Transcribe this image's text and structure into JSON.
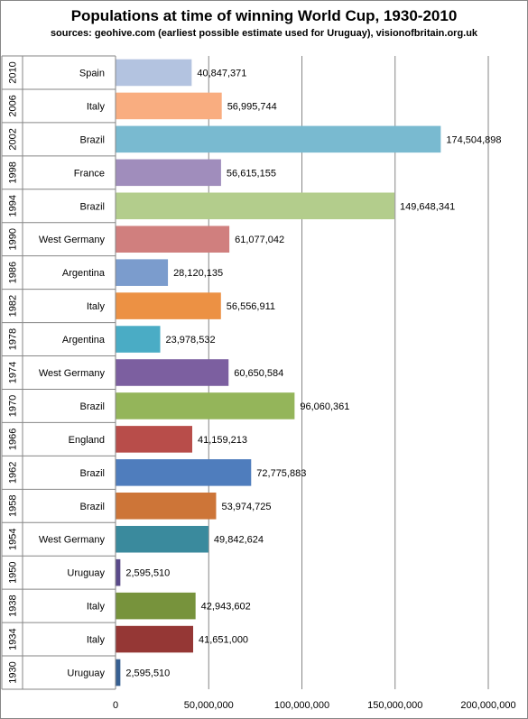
{
  "chart_data": {
    "type": "bar",
    "orientation": "horizontal",
    "title": "Populations at time of winning World Cup, 1930-2010",
    "subtitle": "sources: geohive.com (earliest possible estimate used for Uruguay), visionofbritain.org.uk",
    "categories": [
      {
        "year": "2010",
        "country": "Spain"
      },
      {
        "year": "2006",
        "country": "Italy"
      },
      {
        "year": "2002",
        "country": "Brazil"
      },
      {
        "year": "1998",
        "country": "France"
      },
      {
        "year": "1994",
        "country": "Brazil"
      },
      {
        "year": "1990",
        "country": "West Germany"
      },
      {
        "year": "1986",
        "country": "Argentina"
      },
      {
        "year": "1982",
        "country": "Italy"
      },
      {
        "year": "1978",
        "country": "Argentina"
      },
      {
        "year": "1974",
        "country": "West Germany"
      },
      {
        "year": "1970",
        "country": "Brazil"
      },
      {
        "year": "1966",
        "country": "England"
      },
      {
        "year": "1962",
        "country": "Brazil"
      },
      {
        "year": "1958",
        "country": "Brazil"
      },
      {
        "year": "1954",
        "country": "West Germany"
      },
      {
        "year": "1950",
        "country": "Uruguay"
      },
      {
        "year": "1938",
        "country": "Italy"
      },
      {
        "year": "1934",
        "country": "Italy"
      },
      {
        "year": "1930",
        "country": "Uruguay"
      }
    ],
    "values": [
      40847371,
      56995744,
      174504898,
      56615155,
      149648341,
      61077042,
      28120135,
      56556911,
      23978532,
      60650584,
      96060361,
      41159213,
      72775883,
      53974725,
      49842624,
      2595510,
      42943602,
      41651000,
      2595510
    ],
    "value_labels": [
      "40,847,371",
      "56,995,744",
      "174,504,898",
      "56,615,155",
      "149,648,341",
      "61,077,042",
      "28,120,135",
      "56,556,911",
      "23,978,532",
      "60,650,584",
      "96,060,361",
      "41,159,213",
      "72,775,883",
      "53,974,725",
      "49,842,624",
      "2,595,510",
      "42,943,602",
      "41,651,000",
      "2,595,510"
    ],
    "colors": [
      "#b3c3e0",
      "#f9ad80",
      "#79bad0",
      "#a08dbc",
      "#b3cd8c",
      "#d07f7e",
      "#7b9ccd",
      "#ec9144",
      "#4aacc5",
      "#7c5fa0",
      "#94b55a",
      "#b84d4a",
      "#4f7dbd",
      "#cd7538",
      "#3a8a9d",
      "#5a4a8a",
      "#77933c",
      "#953735",
      "#376092"
    ],
    "xlim": [
      0,
      200000000
    ],
    "x_ticks": [
      "0",
      "50,000,000",
      "100,000,000",
      "150,000,000",
      "200,000,000"
    ],
    "grid": true,
    "legend": "none"
  }
}
